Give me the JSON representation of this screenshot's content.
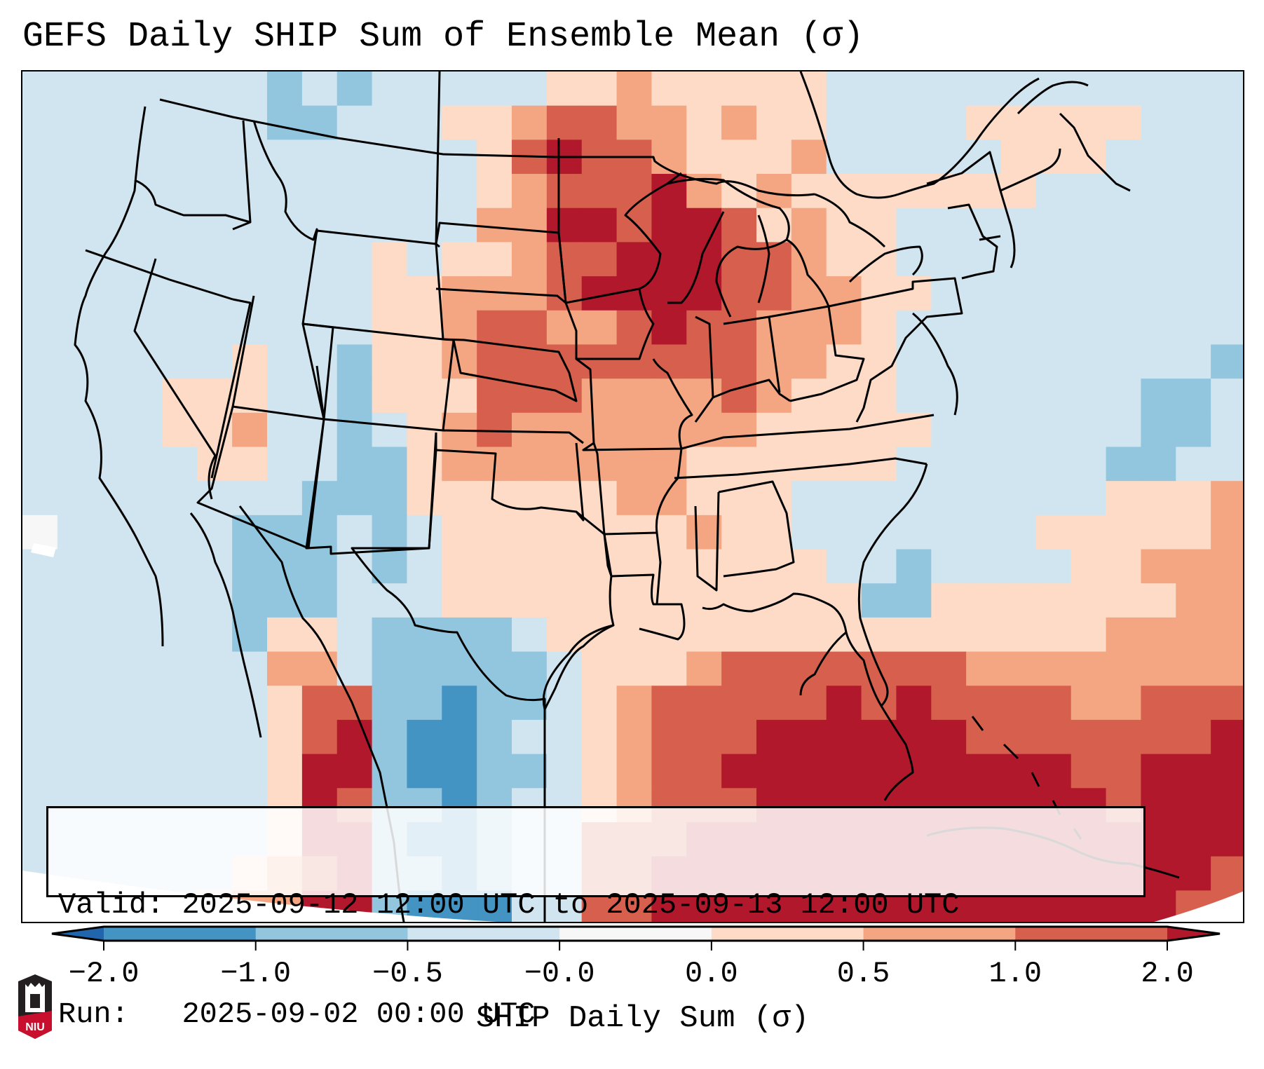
{
  "header": {
    "title": "GEFS Daily SHIP Sum of Ensemble Mean (σ)"
  },
  "info_box": {
    "valid_label": "Valid:",
    "valid_value": "2025-09-12 12:00 UTC to 2025-09-13 12:00 UTC",
    "run_label": "Run:",
    "run_value": "2025-09-02 00:00 UTC"
  },
  "colorbar": {
    "label": "SHIP Daily Sum (σ)",
    "tick_labels": [
      "-2.0",
      "-1.0",
      "-0.5",
      "-0.0",
      "0.0",
      "0.5",
      "1.0",
      "2.0"
    ],
    "bins": [
      {
        "range": "< -2.0",
        "color": "#2166ac"
      },
      {
        "range": "-2.0 to -1.0",
        "color": "#4393c3"
      },
      {
        "range": "-1.0 to -0.5",
        "color": "#92c5de"
      },
      {
        "range": "-0.5 to -0.0",
        "color": "#d1e5f0"
      },
      {
        "range": "-0.0 to 0.0",
        "color": "#f7f7f7"
      },
      {
        "range": "0.0 to 0.5",
        "color": "#fddbc7"
      },
      {
        "range": "0.5 to 1.0",
        "color": "#f4a582"
      },
      {
        "range": "1.0 to 2.0",
        "color": "#d6604d"
      },
      {
        "range": "> 2.0",
        "color": "#b2182b"
      }
    ]
  },
  "logo": {
    "text": "NIU",
    "colors": {
      "top": "#231f20",
      "bottom": "#c8102e"
    }
  },
  "chart_data": {
    "type": "heatmap",
    "title": "GEFS Daily SHIP Sum of Ensemble Mean (σ)",
    "colorbar_label": "SHIP Daily Sum (σ)",
    "value_encoding": "bin index 0-8 into colorbar.bins (0 = below -2.0, 8 = above 2.0)",
    "grid_rows": [
      "33333332323333355655555333333333333",
      "33333332233355677665655333355555333",
      "33333333333335787765556333335553333",
      "33333333333335677786565555555333333",
      "33333333333336688788756553333333333",
      "33333333335355677888776553333333333",
      "33333333335566678888776655333333333",
      "33333333335567766787766653333333333",
      "33333353325567777777766553333333332",
      "33335553325557776666765553333333223",
      "33335563323567666666655555333333223",
      "33333553322566666665555553333332233",
      "33333333222555555665553333333335556",
      "43333322232355555556553333333555556",
      "33333322232355555555555332333355666",
      "33333322233355555555555522555555566",
      "33333325532222355555555555555556666",
      "33333336632222235556777777766666666",
      "33333335772212235677777878777766777",
      "33333335782112335677788888877777778",
      "33333335882112235677888888888877888",
      "33333335872212335677788888888887888",
      "33333335882112337778888888888888888",
      "33333356782212337788888888888888887",
      "33333566882111337788888888888888877"
    ]
  }
}
